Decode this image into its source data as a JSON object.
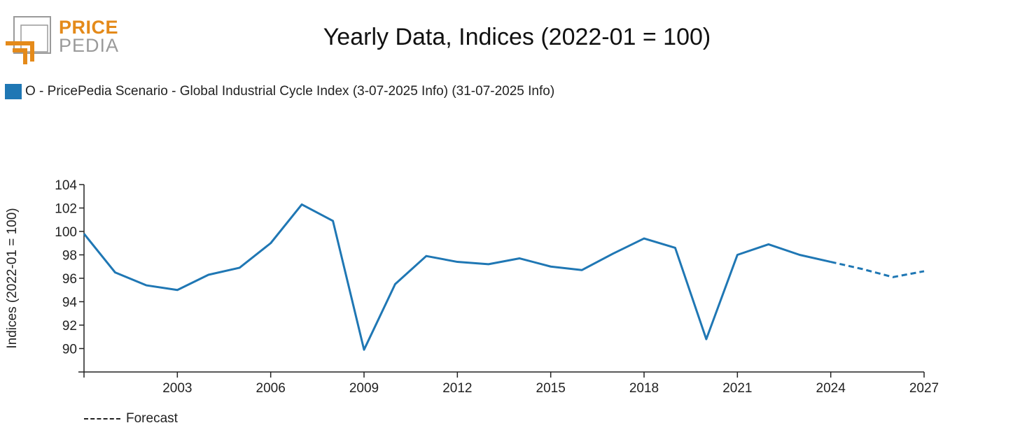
{
  "logo": {
    "line1": "PRICE",
    "line2": "PEDIA"
  },
  "colors": {
    "series": "#1f77b4",
    "brand_orange": "#e48a1a",
    "brand_gray": "#9a9a9a",
    "axis": "#222222"
  },
  "chart_data": {
    "type": "line",
    "title": "Yearly Data, Indices (2022-01 = 100)",
    "ylabel": "Indices (2022-01 = 100)",
    "xlabel": "",
    "xlim": [
      2000,
      2027
    ],
    "ylim": [
      88,
      104
    ],
    "x_ticks": [
      2003,
      2006,
      2009,
      2012,
      2015,
      2018,
      2021,
      2024,
      2027
    ],
    "y_ticks": [
      90,
      92,
      94,
      96,
      98,
      100,
      102,
      104
    ],
    "grid": false,
    "legend_position": "top-left",
    "series": [
      {
        "name": "O - PricePedia Scenario - Global Industrial Cycle Index (3-07-2025 Info) (31-07-2025 Info)",
        "color": "#1f77b4",
        "x": [
          2000,
          2001,
          2002,
          2003,
          2004,
          2005,
          2006,
          2007,
          2008,
          2009,
          2010,
          2011,
          2012,
          2013,
          2014,
          2015,
          2016,
          2017,
          2018,
          2019,
          2020,
          2021,
          2022,
          2023,
          2024,
          2025,
          2026,
          2027
        ],
        "y": [
          99.8,
          96.5,
          95.4,
          95.0,
          96.3,
          96.9,
          99.0,
          102.3,
          100.9,
          89.9,
          95.5,
          97.9,
          97.4,
          97.2,
          97.7,
          97.0,
          96.7,
          98.1,
          99.4,
          98.6,
          90.8,
          98.0,
          98.9,
          98.0,
          97.4,
          96.8,
          96.1,
          96.6
        ],
        "forecast_from": 2024
      }
    ],
    "forecast_legend": "Forecast"
  }
}
